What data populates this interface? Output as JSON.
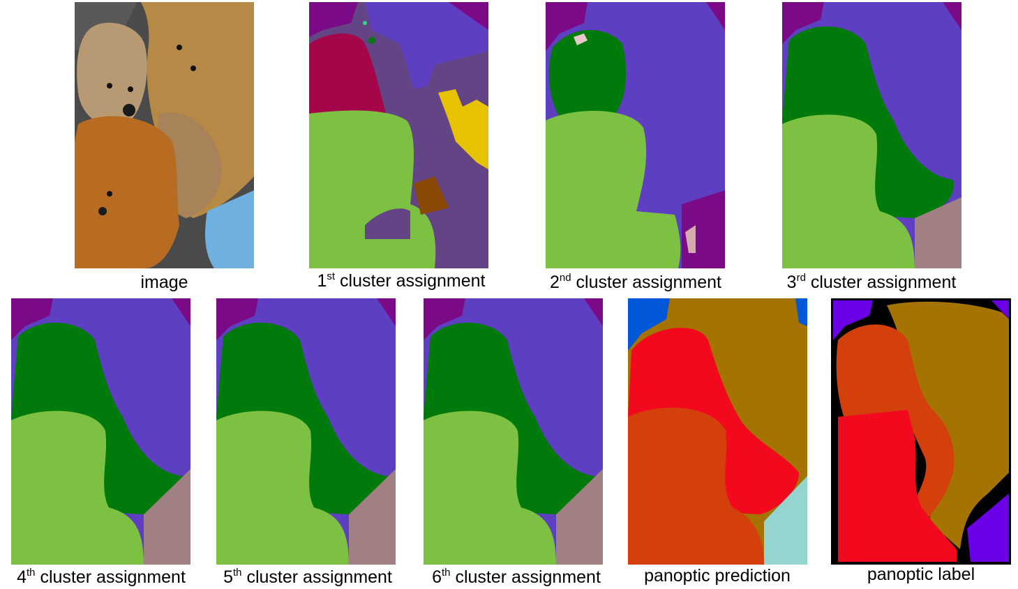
{
  "figure": {
    "captions": {
      "image": "image",
      "c1_num": "1",
      "c1_sup": "st",
      "c2_num": "2",
      "c2_sup": "nd",
      "c3_num": "3",
      "c3_sup": "rd",
      "c4_num": "4",
      "c4_sup": "th",
      "c5_num": "5",
      "c5_sup": "th",
      "c6_num": "6",
      "c6_sup": "th",
      "cluster_suffix": "cluster assignment",
      "pred": "panoptic prediction",
      "label": "panoptic label"
    },
    "colors": {
      "purple_dark": "#7a0a85",
      "violet": "#5e3fc1",
      "dark_green": "#007a0a",
      "light_green": "#7dc143",
      "mauve": "#a08082",
      "crimson": "#a5064a",
      "slate_purple": "#634585",
      "yellow": "#e6c200",
      "brown": "#8a4a06",
      "pink": "#e8c8c8",
      "blue": "#0057d8",
      "olive_brown": "#a57300",
      "red": "#f2091e",
      "orange_red": "#d3400c",
      "light_cyan": "#96d4d0",
      "violet_bright": "#6b00e6",
      "black": "#000000",
      "bear_light": "#b79a73",
      "bear_dark": "#b86c22",
      "bear_yellow": "#b68a46",
      "fabric": "#4a4a4a",
      "cushion": "#6fb0e0"
    }
  }
}
